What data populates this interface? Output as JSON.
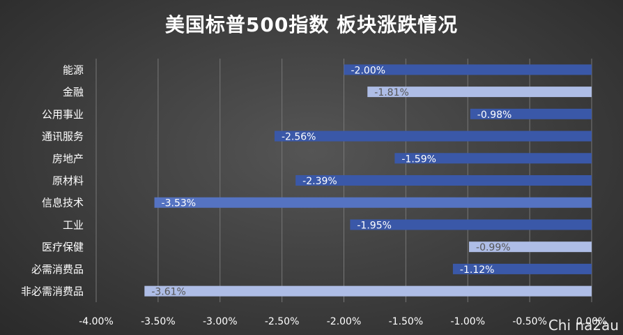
{
  "chart_data": {
    "type": "bar",
    "orientation": "horizontal",
    "title": "美国标普500指数 板块涨跌情况",
    "categories": [
      "能源",
      "金融",
      "公用事业",
      "通讯服务",
      "房地产",
      "原材料",
      "信息技术",
      "工业",
      "医疗保健",
      "必需消费品",
      "非必需消费品"
    ],
    "values": [
      -2.0,
      -1.81,
      -0.98,
      -2.56,
      -1.59,
      -2.39,
      -3.53,
      -1.95,
      -0.99,
      -1.12,
      -3.61
    ],
    "labels": [
      "-2.00%",
      "-1.81%",
      "-0.98%",
      "-2.56%",
      "-1.59%",
      "-2.39%",
      "-3.53%",
      "-1.95%",
      "-0.99%",
      "-1.12%",
      "-3.61%"
    ],
    "styles": [
      "dark",
      "light",
      "dark",
      "dark",
      "dark",
      "dark",
      "mid",
      "dark",
      "light",
      "dark",
      "light"
    ],
    "xlim": [
      -4.0,
      0.0
    ],
    "xticks": [
      -4.0,
      -3.5,
      -3.0,
      -2.5,
      -2.0,
      -1.5,
      -1.0,
      -0.5,
      0.0
    ],
    "xtick_labels": [
      "-4.00%",
      "-3.50%",
      "-3.00%",
      "-2.50%",
      "-2.00%",
      "-1.50%",
      "-1.00%",
      "-0.50%",
      "0.00%"
    ],
    "xlabel": "",
    "ylabel": "",
    "grid": "vertical",
    "legend": "none",
    "colors": {
      "dark": "#3a58a8",
      "mid": "#5573c2",
      "light": "#aebde6",
      "grid": "#777777",
      "text": "#ffffff",
      "dark_label": "#ffffff",
      "light_label": "#555555"
    }
  },
  "watermark": "Chi na2au"
}
